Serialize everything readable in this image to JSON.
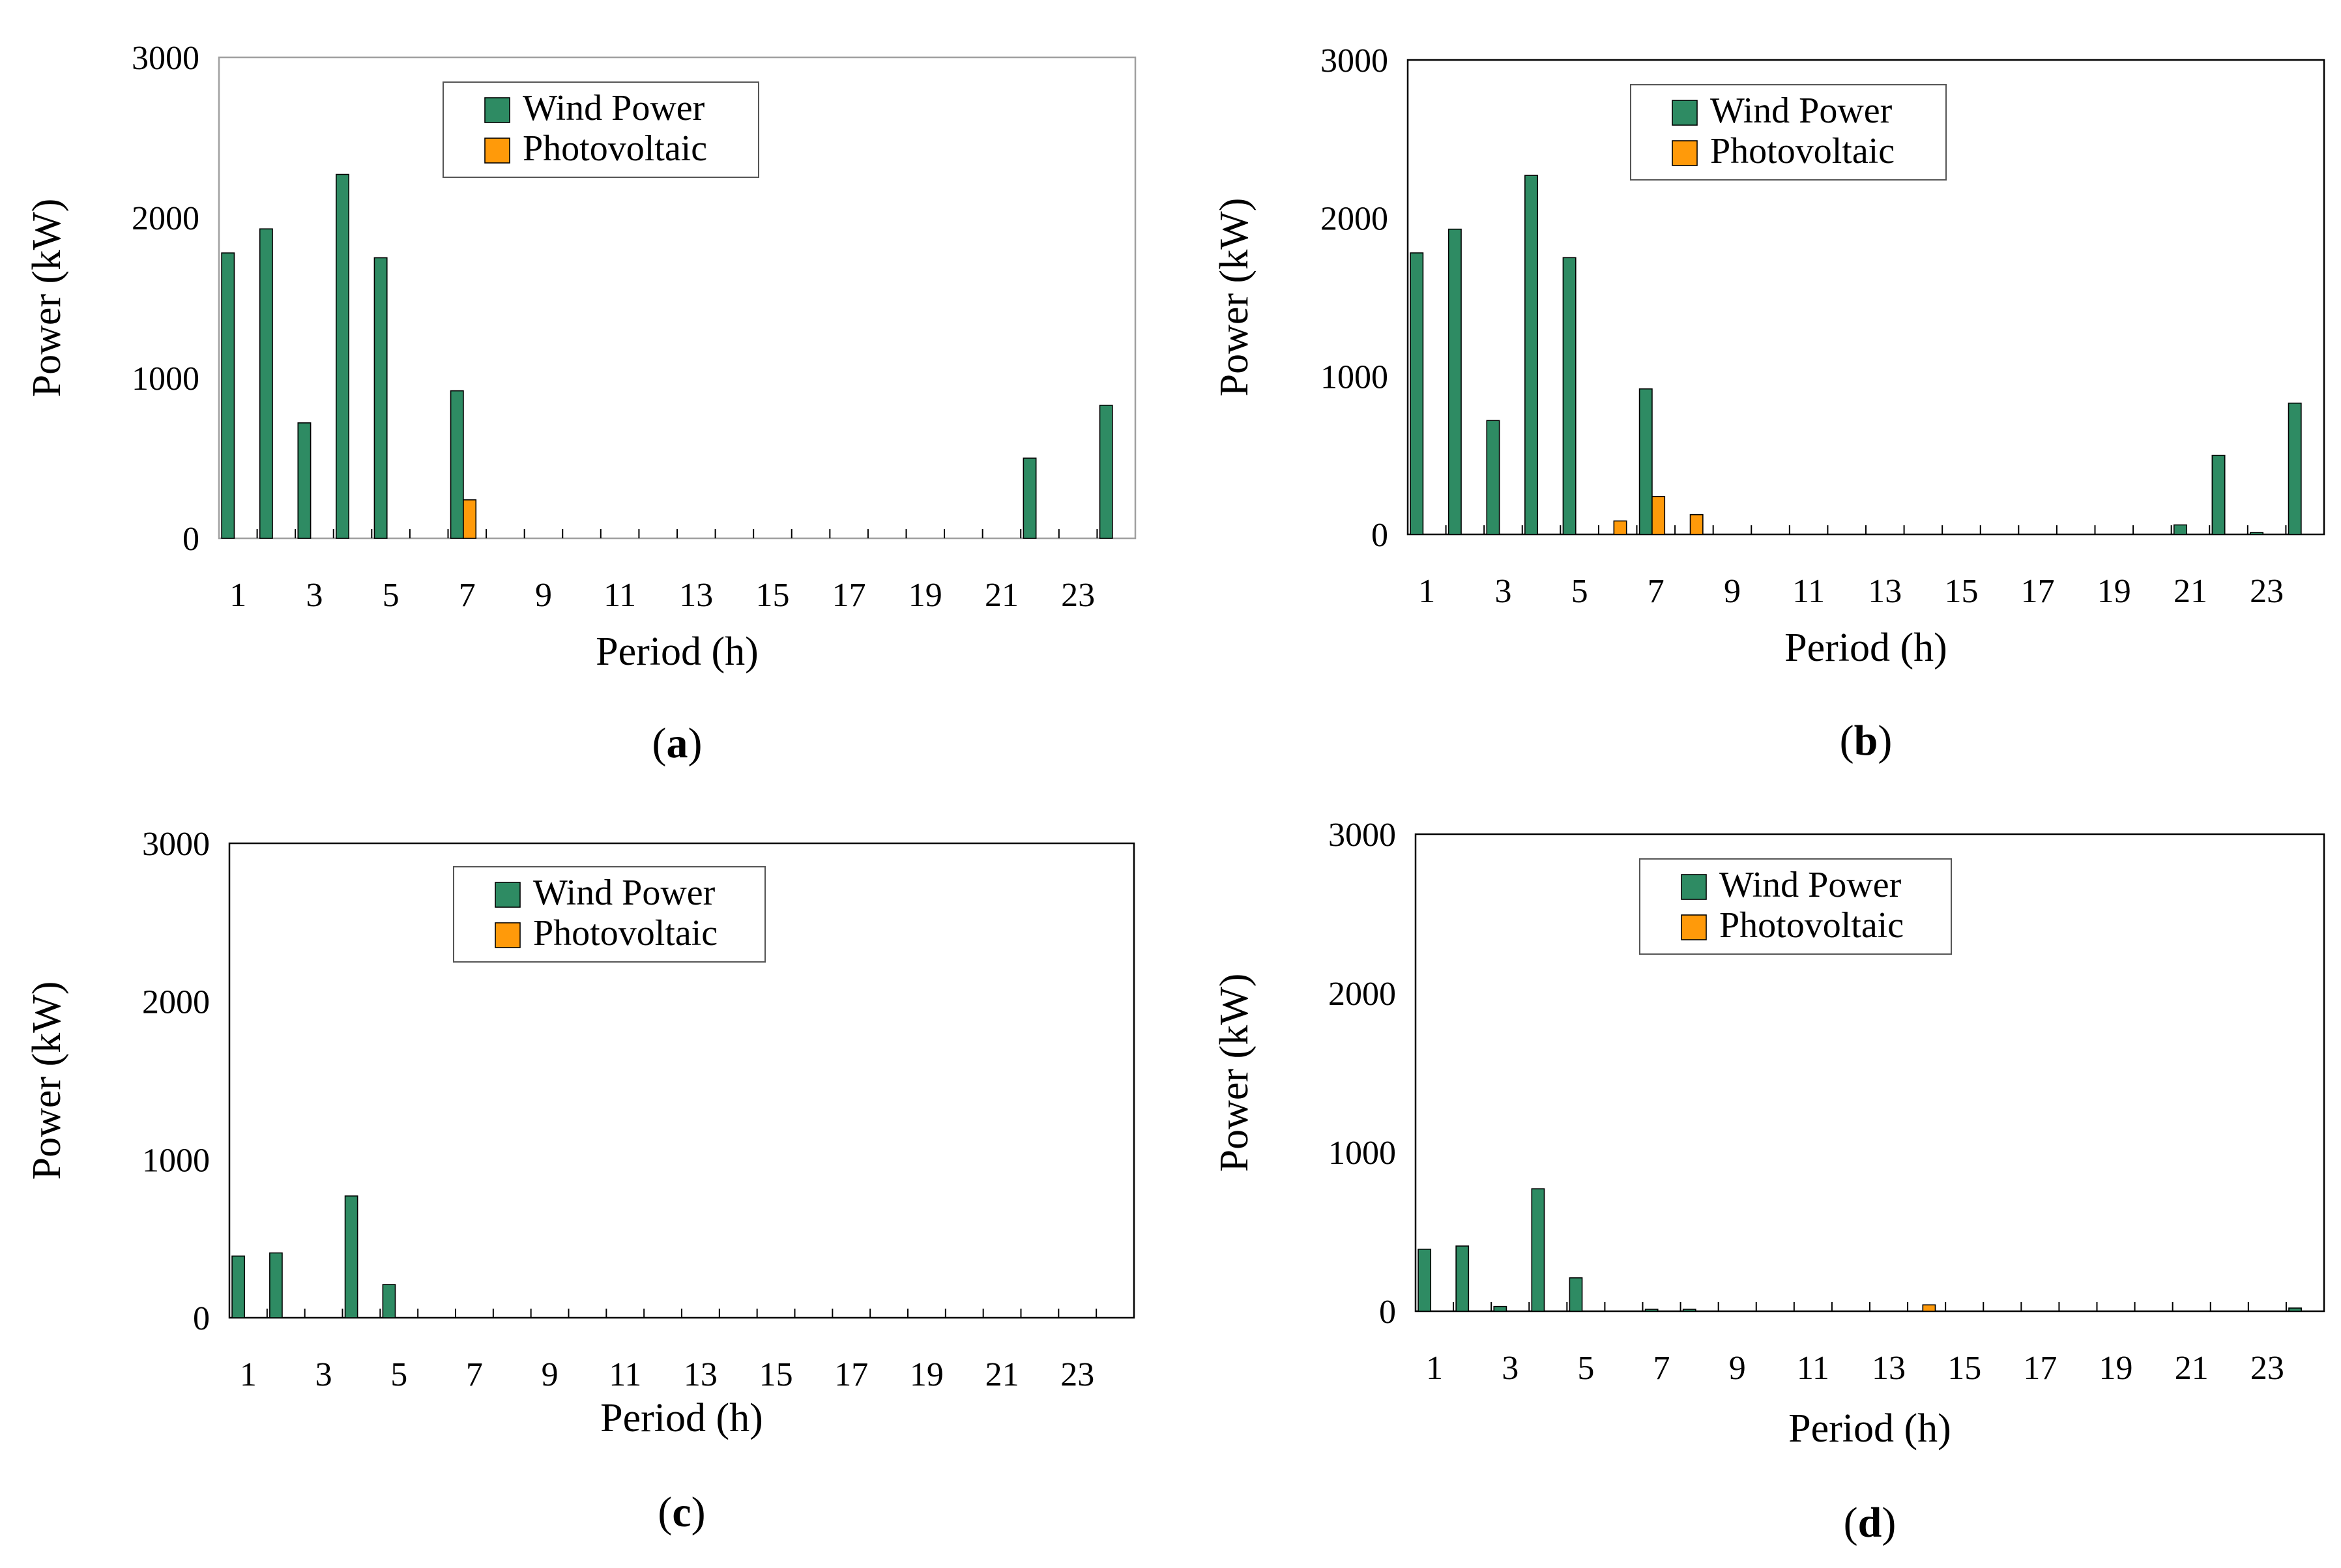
{
  "chart_data": [
    {
      "type": "bar",
      "panel_label": "a",
      "xlabel": "Period (h)",
      "ylabel": "Power (kW)",
      "ylim": [
        0,
        3000
      ],
      "yticks": [
        "0",
        "1000",
        "2000",
        "3000"
      ],
      "x_tick_labels": [
        "1",
        "3",
        "5",
        "7",
        "9",
        "11",
        "13",
        "15",
        "17",
        "19",
        "21",
        "23"
      ],
      "categories": [
        1,
        2,
        3,
        4,
        5,
        6,
        7,
        8,
        9,
        10,
        11,
        12,
        13,
        14,
        15,
        16,
        17,
        18,
        19,
        20,
        21,
        22,
        23,
        24
      ],
      "legend_position": "top-center",
      "series": [
        {
          "name": "Wind Power",
          "color": "#2e8b63",
          "values": [
            1780,
            1930,
            720,
            2270,
            1750,
            0,
            920,
            0,
            0,
            0,
            0,
            0,
            0,
            0,
            0,
            0,
            0,
            0,
            0,
            0,
            0,
            500,
            0,
            830
          ]
        },
        {
          "name": "Photovoltaic",
          "color": "#ff9a0a",
          "values": [
            0,
            0,
            0,
            0,
            0,
            0,
            240,
            0,
            0,
            0,
            0,
            0,
            0,
            0,
            0,
            0,
            0,
            0,
            0,
            0,
            0,
            0,
            0,
            0
          ]
        }
      ]
    },
    {
      "type": "bar",
      "panel_label": "b",
      "xlabel": "Period (h)",
      "ylabel": "Power (kW)",
      "ylim": [
        0,
        3000
      ],
      "yticks": [
        "0",
        "1000",
        "2000",
        "3000"
      ],
      "x_tick_labels": [
        "1",
        "3",
        "5",
        "7",
        "9",
        "11",
        "13",
        "15",
        "17",
        "19",
        "21",
        "23"
      ],
      "categories": [
        1,
        2,
        3,
        4,
        5,
        6,
        7,
        8,
        9,
        10,
        11,
        12,
        13,
        14,
        15,
        16,
        17,
        18,
        19,
        20,
        21,
        22,
        23,
        24
      ],
      "legend_position": "top-center",
      "series": [
        {
          "name": "Wind Power",
          "color": "#2e8b63",
          "values": [
            1780,
            1930,
            720,
            2270,
            1750,
            0,
            920,
            0,
            0,
            0,
            0,
            0,
            0,
            0,
            0,
            0,
            0,
            0,
            0,
            0,
            60,
            500,
            10,
            830
          ]
        },
        {
          "name": "Photovoltaic",
          "color": "#ff9a0a",
          "values": [
            0,
            0,
            0,
            0,
            0,
            85,
            240,
            125,
            0,
            0,
            0,
            0,
            0,
            0,
            0,
            0,
            0,
            0,
            0,
            0,
            0,
            0,
            0,
            0
          ]
        }
      ]
    },
    {
      "type": "bar",
      "panel_label": "c",
      "xlabel": "Period (h)",
      "ylabel": "Power (kW)",
      "ylim": [
        0,
        3000
      ],
      "yticks": [
        "0",
        "1000",
        "2000",
        "3000"
      ],
      "x_tick_labels": [
        "1",
        "3",
        "5",
        "7",
        "9",
        "11",
        "13",
        "15",
        "17",
        "19",
        "21",
        "23"
      ],
      "categories": [
        1,
        2,
        3,
        4,
        5,
        6,
        7,
        8,
        9,
        10,
        11,
        12,
        13,
        14,
        15,
        16,
        17,
        18,
        19,
        20,
        21,
        22,
        23,
        24
      ],
      "legend_position": "top-center",
      "series": [
        {
          "name": "Wind Power",
          "color": "#2e8b63",
          "values": [
            390,
            410,
            0,
            770,
            210,
            0,
            0,
            0,
            0,
            0,
            0,
            0,
            0,
            0,
            0,
            0,
            0,
            0,
            0,
            0,
            0,
            0,
            0,
            0
          ]
        },
        {
          "name": "Photovoltaic",
          "color": "#ff9a0a",
          "values": [
            0,
            0,
            0,
            0,
            0,
            0,
            0,
            0,
            0,
            0,
            0,
            0,
            0,
            0,
            0,
            0,
            0,
            0,
            0,
            0,
            0,
            0,
            0,
            0
          ]
        }
      ]
    },
    {
      "type": "bar",
      "panel_label": "d",
      "xlabel": "Period (h)",
      "ylabel": "Power (kW)",
      "ylim": [
        0,
        3000
      ],
      "yticks": [
        "0",
        "1000",
        "2000",
        "3000"
      ],
      "x_tick_labels": [
        "1",
        "3",
        "5",
        "7",
        "9",
        "11",
        "13",
        "15",
        "17",
        "19",
        "21",
        "23"
      ],
      "categories": [
        1,
        2,
        3,
        4,
        5,
        6,
        7,
        8,
        9,
        10,
        11,
        12,
        13,
        14,
        15,
        16,
        17,
        18,
        19,
        20,
        21,
        22,
        23,
        24
      ],
      "legend_position": "top-center",
      "series": [
        {
          "name": "Wind Power",
          "color": "#2e8b63",
          "values": [
            390,
            410,
            30,
            770,
            210,
            0,
            5,
            10,
            0,
            0,
            0,
            0,
            0,
            0,
            0,
            0,
            0,
            0,
            0,
            0,
            0,
            0,
            0,
            20
          ]
        },
        {
          "name": "Photovoltaic",
          "color": "#ff9a0a",
          "values": [
            0,
            0,
            0,
            0,
            0,
            0,
            0,
            0,
            0,
            0,
            0,
            0,
            0,
            40,
            0,
            0,
            0,
            0,
            0,
            0,
            0,
            0,
            0,
            0
          ]
        }
      ]
    }
  ]
}
